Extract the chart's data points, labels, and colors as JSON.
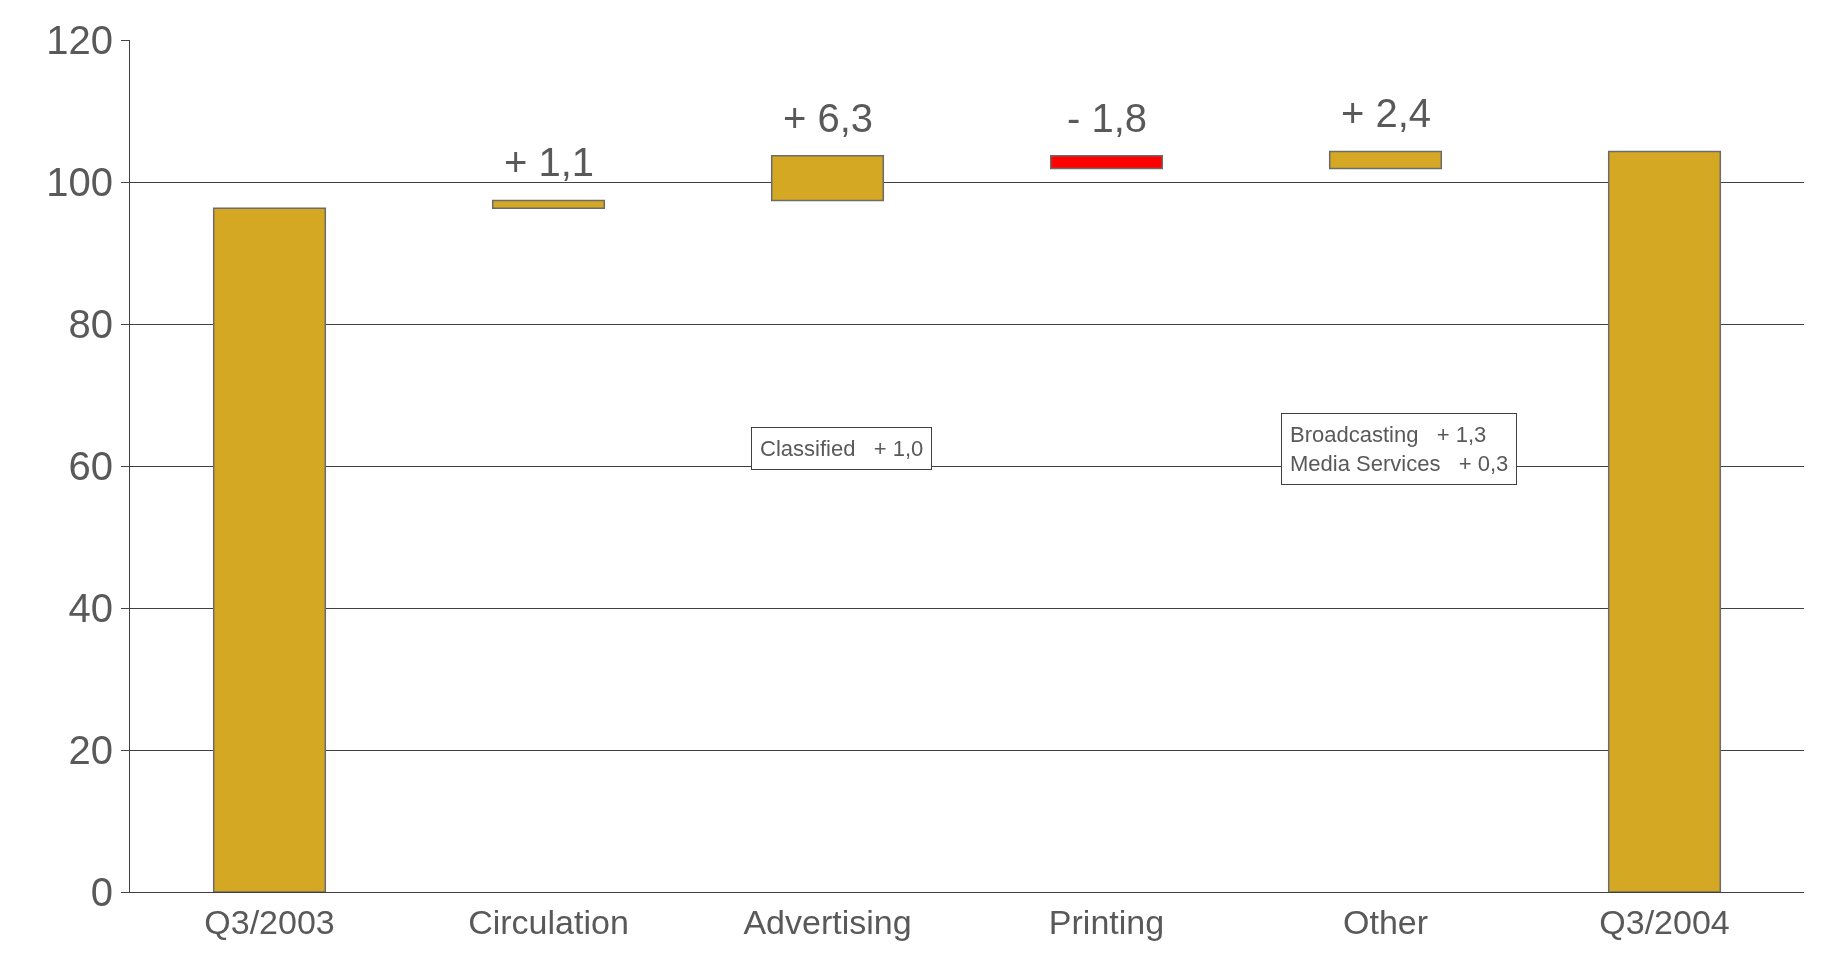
{
  "chart_data": {
    "type": "bar",
    "categories": [
      "Q3/2003",
      "Circulation",
      "Advertising",
      "Printing",
      "Other",
      "Q3/2004"
    ],
    "values": [
      96.3,
      1.1,
      6.3,
      -1.8,
      2.4,
      104.3
    ],
    "base": [
      0,
      96.3,
      97.4,
      103.7,
      101.9,
      0
    ],
    "colors": [
      "#d4a823",
      "#d4a823",
      "#d4a823",
      "#ff0000",
      "#d4a823",
      "#d4a823"
    ],
    "value_labels": [
      null,
      "+ 1,1",
      "+ 6,3",
      "- 1,8",
      "+ 2,4",
      null
    ],
    "ylim": [
      0,
      120
    ],
    "yticks": [
      0,
      20,
      40,
      60,
      80,
      100,
      120
    ],
    "grid": "y",
    "legend": false,
    "annotations": [
      "Classified   + 1,0",
      "Broadcasting   + 1,3\nMedia Services   + 0,3"
    ]
  }
}
